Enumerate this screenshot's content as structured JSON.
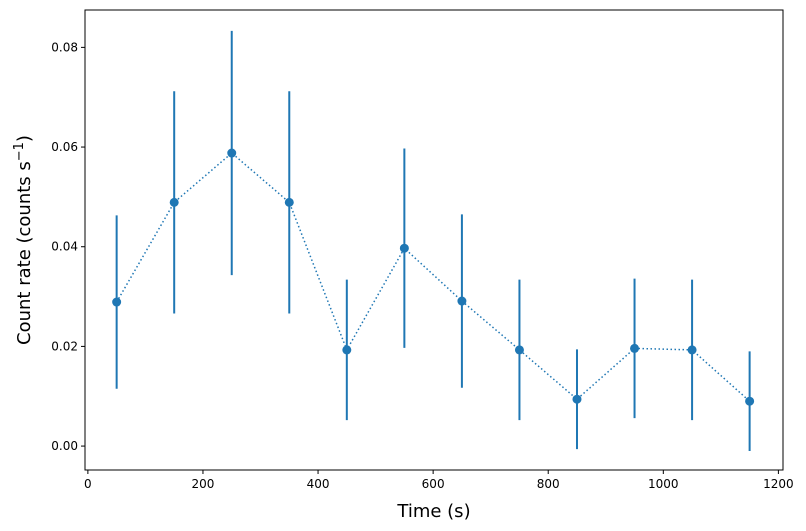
{
  "chart_data": {
    "type": "scatter",
    "title": "",
    "xlabel": "Time (s)",
    "ylabel": "Count rate (counts s",
    "ylabel_sup": "−1",
    "ylabel_end": ")",
    "xlim": [
      -5,
      1208
    ],
    "ylim": [
      -0.0048,
      0.0875
    ],
    "xticks": [
      0,
      200,
      400,
      600,
      800,
      1000,
      1200
    ],
    "xtick_labels": [
      "0",
      "200",
      "400",
      "600",
      "800",
      "1000",
      "1200"
    ],
    "yticks": [
      0,
      0.02,
      0.04,
      0.06,
      0.08
    ],
    "ytick_labels": [
      "0.00",
      "0.02",
      "0.04",
      "0.06",
      "0.08"
    ],
    "color": "#1f77b4",
    "line_style": "dotted",
    "series": [
      {
        "name": "count rate",
        "x": [
          50,
          150,
          250,
          350,
          450,
          550,
          650,
          750,
          850,
          950,
          1050,
          1150
        ],
        "y": [
          0.0289,
          0.0489,
          0.0588,
          0.0489,
          0.0193,
          0.0397,
          0.0291,
          0.0193,
          0.0094,
          0.0196,
          0.0193,
          0.009
        ],
        "yerr": [
          0.0174,
          0.0223,
          0.0245,
          0.0223,
          0.0141,
          0.02,
          0.0174,
          0.0141,
          0.01,
          0.014,
          0.0141,
          0.01
        ]
      }
    ]
  }
}
